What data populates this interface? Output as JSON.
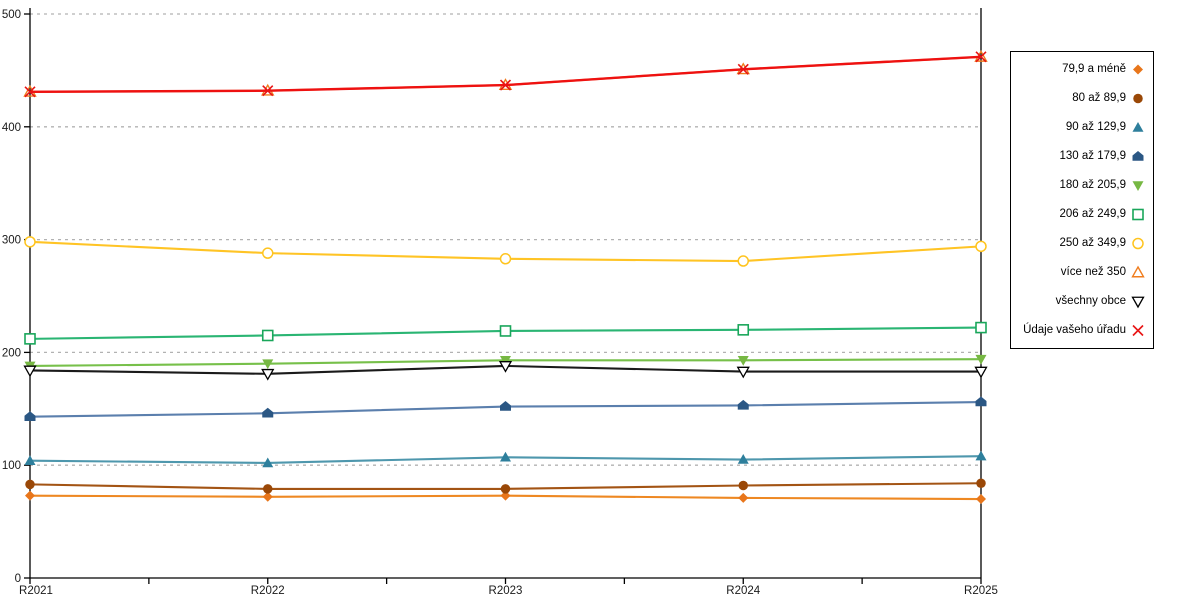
{
  "chart_data": {
    "type": "line",
    "title": "",
    "xlabel": "",
    "ylabel": "",
    "x_labels": [
      "R2021",
      "R2022",
      "R2023",
      "R2024",
      "R2025"
    ],
    "y_ticks": [
      0,
      100,
      200,
      300,
      400,
      500
    ],
    "ylim": [
      0,
      500
    ],
    "grid": "horizontal-dashed",
    "gridline_color": "#b2b2b2",
    "axis_color": "#000000",
    "legend_position": "right-outside",
    "series": [
      {
        "name": "79,9 a méně",
        "marker": "diamond-filled",
        "marker_color": "#e8761b",
        "line_color": "#ee8822",
        "values": [
          73,
          72,
          73,
          71,
          70
        ]
      },
      {
        "name": "80 až 89,9",
        "marker": "circle-filled",
        "marker_color": "#9a4807",
        "line_color": "#a35414",
        "values": [
          83,
          79,
          79,
          82,
          84
        ]
      },
      {
        "name": "90 až 129,9",
        "marker": "triangle-up-filled",
        "marker_color": "#2e7f9c",
        "line_color": "#4e97ad",
        "values": [
          104,
          102,
          107,
          105,
          108
        ]
      },
      {
        "name": "130 až 179,9",
        "marker": "pentagon-filled",
        "marker_color": "#2b5784",
        "line_color": "#5b7fad",
        "values": [
          143,
          146,
          152,
          153,
          156
        ]
      },
      {
        "name": "180 až 205,9",
        "marker": "triangle-down-filled",
        "marker_color": "#77b843",
        "line_color": "#77c04a",
        "values": [
          188,
          190,
          193,
          193,
          194
        ]
      },
      {
        "name": "206 až 249,9",
        "marker": "square-open",
        "marker_color": "#19a65a",
        "line_color": "#2ab573",
        "values": [
          212,
          215,
          219,
          220,
          222
        ]
      },
      {
        "name": "250 až 349,9",
        "marker": "circle-open",
        "marker_color": "#ffc41e",
        "line_color": "#ffc425",
        "values": [
          298,
          288,
          283,
          281,
          294
        ]
      },
      {
        "name": "více než 350",
        "marker": "triangle-up-open",
        "marker_color": "#f07d1e",
        "line_color": "#f08e2e",
        "values": [
          431,
          432,
          437,
          451,
          462
        ]
      },
      {
        "name": "všechny obce",
        "marker": "triangle-down-open",
        "marker_color": "#000000",
        "line_color": "#1a1a1a",
        "values": [
          184,
          181,
          188,
          183,
          183
        ]
      },
      {
        "name": "Údaje vašeho úřadu",
        "marker": "x-cross",
        "marker_color": "#e81515",
        "line_color": "#ee1111",
        "values": [
          431,
          432,
          437,
          451,
          462
        ]
      }
    ]
  }
}
